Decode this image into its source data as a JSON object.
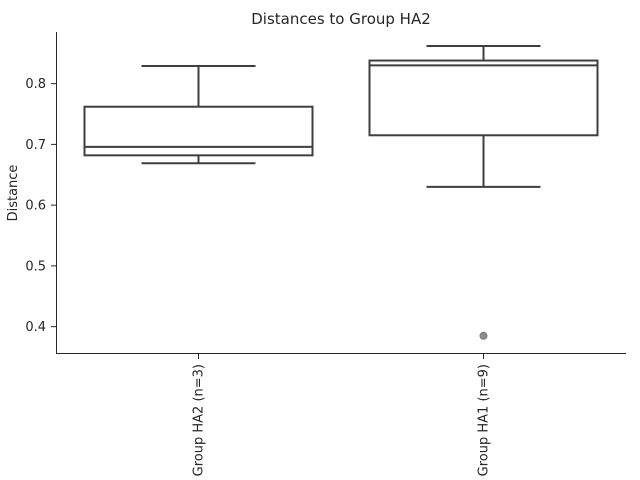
{
  "chart_data": {
    "type": "box",
    "title": "Distances to Group HA2",
    "xlabel": "",
    "ylabel": "Distance",
    "ylim": [
      0.355,
      0.885
    ],
    "yticks": [
      0.4,
      0.5,
      0.6,
      0.7,
      0.8
    ],
    "ytick_labels": [
      "0.4",
      "0.5",
      "0.6",
      "0.7",
      "0.8"
    ],
    "grid": false,
    "categories": [
      "Group HA2 (n=3)",
      "Group HA1 (n=9)"
    ],
    "boxes": [
      {
        "category": "Group HA2 (n=3)",
        "whisker_low": 0.669,
        "q1": 0.682,
        "median": 0.696,
        "q3": 0.762,
        "whisker_high": 0.829,
        "outliers": []
      },
      {
        "category": "Group HA1 (n=9)",
        "whisker_low": 0.63,
        "q1": 0.715,
        "median": 0.83,
        "q3": 0.838,
        "whisker_high": 0.862,
        "outliers": [
          0.385
        ]
      }
    ],
    "colors": {
      "box_line": "#3f3f3f",
      "box_fill": "#ffffff",
      "outlier": "#8c8c8c",
      "axis": "#262626"
    }
  }
}
